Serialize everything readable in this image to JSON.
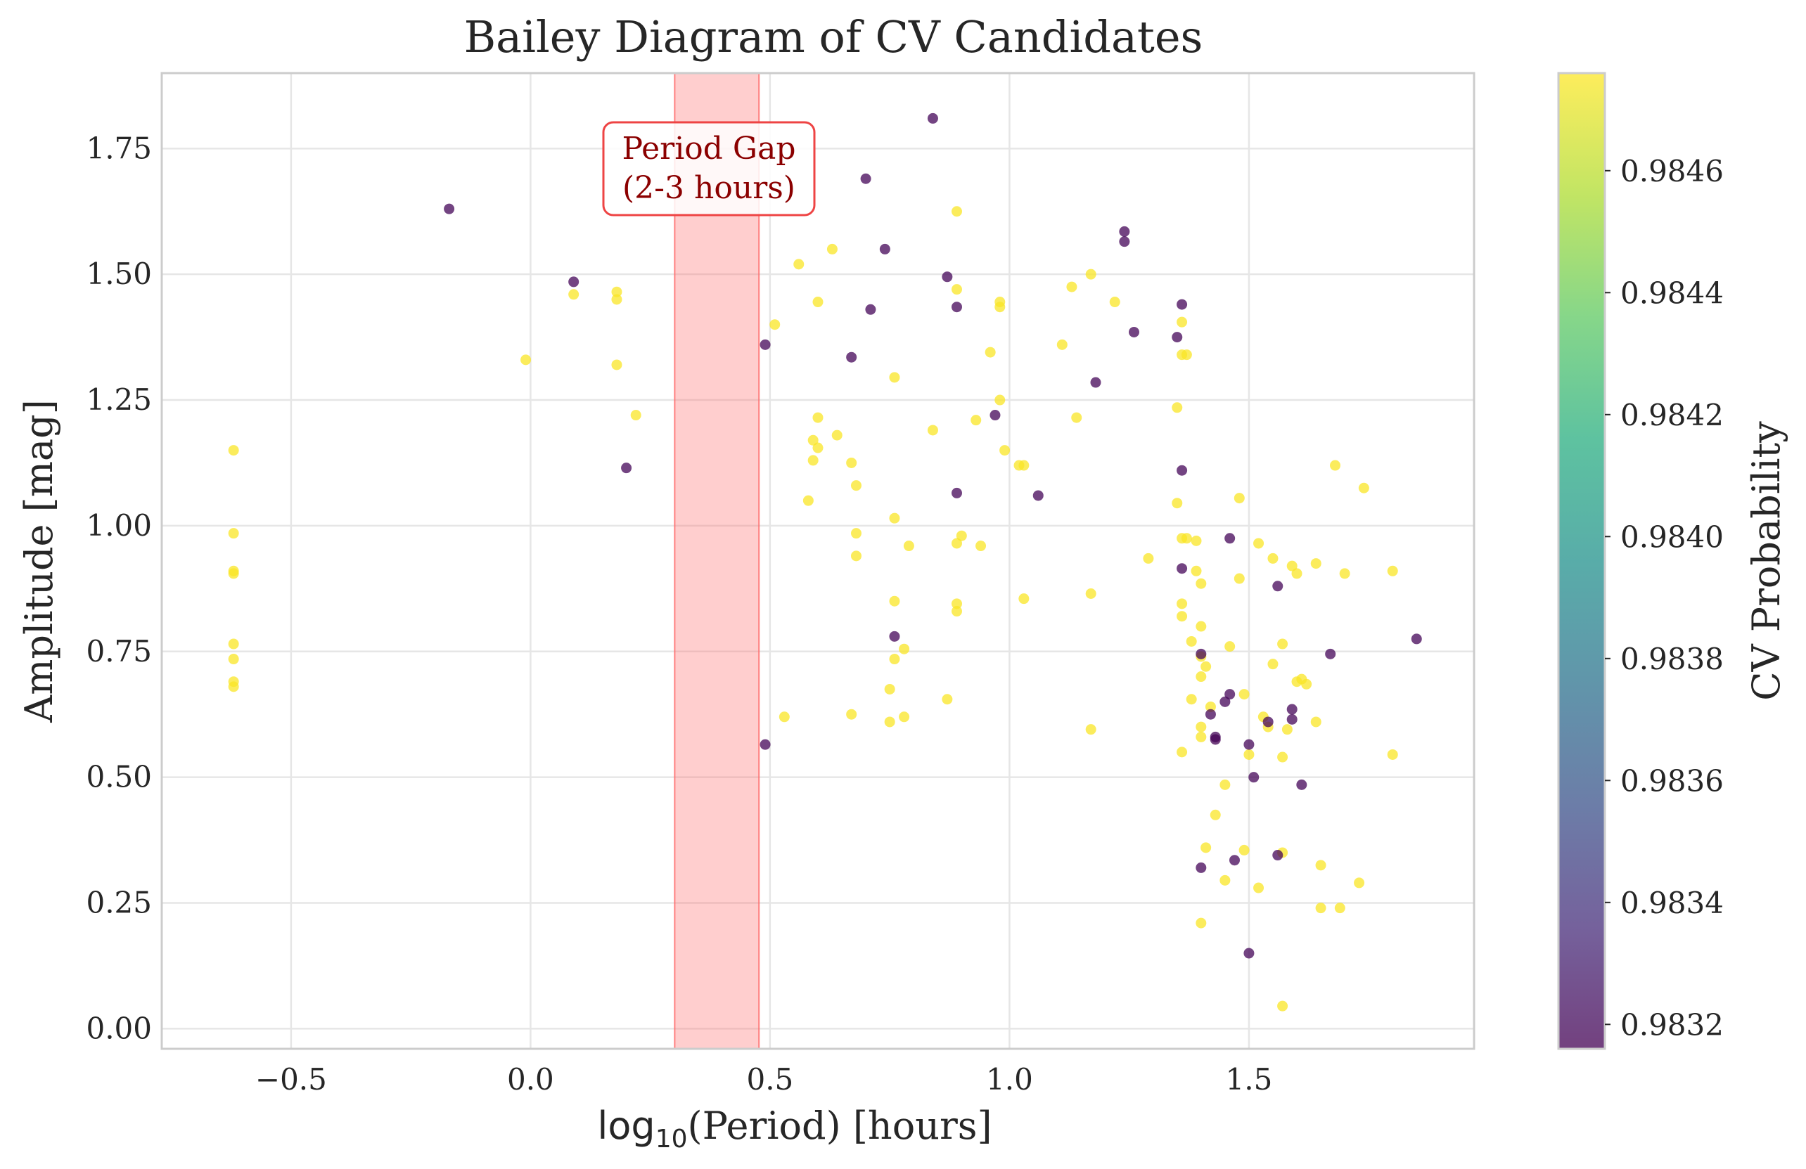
{
  "chart_data": {
    "type": "scatter",
    "title": "Bailey Diagram of CV Candidates",
    "xlabel_base": "log",
    "xlabel_sub": "10",
    "xlabel_rest": "(Period) [hours]",
    "ylabel": "Amplitude [mag]",
    "xlim": [
      -0.77,
      1.97
    ],
    "ylim": [
      -0.04,
      1.9
    ],
    "x_ticks": [
      -0.5,
      0.0,
      0.5,
      1.0,
      1.5
    ],
    "x_tick_labels": [
      "−0.5",
      "0.0",
      "0.5",
      "1.0",
      "1.5"
    ],
    "y_ticks": [
      0.0,
      0.25,
      0.5,
      0.75,
      1.0,
      1.25,
      1.5,
      1.75
    ],
    "y_tick_labels": [
      "0.00",
      "0.25",
      "0.50",
      "0.75",
      "1.00",
      "1.25",
      "1.50",
      "1.75"
    ],
    "grid": true,
    "colormap": "viridis",
    "colorbar": {
      "label": "CV Probability",
      "range": [
        0.98316,
        0.98476
      ],
      "ticks": [
        0.9832,
        0.9834,
        0.9836,
        0.9838,
        0.984,
        0.9842,
        0.9844,
        0.9846
      ],
      "tick_labels": [
        "0.9832",
        "0.9834",
        "0.9836",
        "0.9838",
        "0.9840",
        "0.9842",
        "0.9844",
        "0.9846"
      ]
    },
    "shaded_region": {
      "x_range": [
        0.301,
        0.477
      ],
      "color": "#ff6666",
      "label_line1": "Period Gap",
      "label_line2": "(2-3 hours)"
    },
    "series": [
      {
        "color_value": 0.98475,
        "points": [
          [
            -0.62,
            1.15
          ],
          [
            -0.62,
            0.985
          ],
          [
            -0.62,
            0.91
          ],
          [
            -0.62,
            0.905
          ],
          [
            -0.62,
            0.765
          ],
          [
            -0.62,
            0.735
          ],
          [
            -0.62,
            0.69
          ],
          [
            -0.62,
            0.68
          ],
          [
            -0.01,
            1.33
          ],
          [
            0.09,
            1.46
          ],
          [
            0.18,
            1.465
          ],
          [
            0.18,
            1.45
          ],
          [
            0.18,
            1.32
          ],
          [
            0.22,
            1.22
          ],
          [
            0.51,
            1.4
          ],
          [
            0.53,
            0.62
          ],
          [
            0.56,
            1.52
          ],
          [
            0.58,
            1.05
          ],
          [
            0.59,
            1.17
          ],
          [
            0.59,
            1.13
          ],
          [
            0.6,
            1.155
          ],
          [
            0.6,
            1.445
          ],
          [
            0.6,
            1.215
          ],
          [
            0.63,
            1.55
          ],
          [
            0.64,
            1.18
          ],
          [
            0.67,
            1.125
          ],
          [
            0.67,
            0.625
          ],
          [
            0.68,
            1.08
          ],
          [
            0.68,
            0.985
          ],
          [
            0.68,
            0.94
          ],
          [
            0.76,
            1.295
          ],
          [
            0.76,
            1.015
          ],
          [
            0.76,
            0.85
          ],
          [
            0.76,
            0.735
          ],
          [
            0.75,
            0.675
          ],
          [
            0.75,
            0.61
          ],
          [
            0.78,
            0.755
          ],
          [
            0.78,
            0.62
          ],
          [
            0.79,
            0.96
          ],
          [
            0.84,
            1.19
          ],
          [
            0.87,
            0.655
          ],
          [
            0.89,
            1.625
          ],
          [
            0.89,
            1.47
          ],
          [
            0.89,
            0.845
          ],
          [
            0.89,
            0.83
          ],
          [
            0.89,
            0.965
          ],
          [
            0.9,
            0.98
          ],
          [
            0.93,
            1.21
          ],
          [
            0.94,
            0.96
          ],
          [
            0.96,
            1.345
          ],
          [
            0.98,
            1.25
          ],
          [
            0.98,
            1.445
          ],
          [
            0.98,
            1.435
          ],
          [
            0.99,
            1.15
          ],
          [
            1.02,
            1.12
          ],
          [
            1.03,
            1.12
          ],
          [
            1.03,
            0.855
          ],
          [
            1.11,
            1.36
          ],
          [
            1.13,
            1.475
          ],
          [
            1.14,
            1.215
          ],
          [
            1.17,
            1.5
          ],
          [
            1.17,
            0.865
          ],
          [
            1.17,
            0.595
          ],
          [
            1.22,
            1.445
          ],
          [
            1.29,
            0.935
          ],
          [
            1.35,
            1.235
          ],
          [
            1.35,
            1.045
          ],
          [
            1.36,
            1.405
          ],
          [
            1.36,
            1.34
          ],
          [
            1.37,
            1.34
          ],
          [
            1.36,
            0.975
          ],
          [
            1.37,
            0.975
          ],
          [
            1.36,
            0.845
          ],
          [
            1.36,
            0.82
          ],
          [
            1.36,
            0.55
          ],
          [
            1.38,
            0.77
          ],
          [
            1.39,
            0.97
          ],
          [
            1.39,
            0.91
          ],
          [
            1.4,
            0.885
          ],
          [
            1.4,
            0.8
          ],
          [
            1.4,
            0.74
          ],
          [
            1.4,
            0.7
          ],
          [
            1.41,
            0.72
          ],
          [
            1.4,
            0.6
          ],
          [
            1.4,
            0.58
          ],
          [
            1.41,
            0.36
          ],
          [
            1.4,
            0.21
          ],
          [
            1.38,
            0.655
          ],
          [
            1.42,
            0.64
          ],
          [
            1.43,
            0.425
          ],
          [
            1.45,
            0.485
          ],
          [
            1.45,
            0.295
          ],
          [
            1.46,
            0.76
          ],
          [
            1.48,
            1.055
          ],
          [
            1.48,
            0.895
          ],
          [
            1.49,
            0.665
          ],
          [
            1.49,
            0.355
          ],
          [
            1.5,
            0.545
          ],
          [
            1.52,
            0.965
          ],
          [
            1.52,
            0.28
          ],
          [
            1.53,
            0.62
          ],
          [
            1.54,
            0.6
          ],
          [
            1.55,
            0.935
          ],
          [
            1.55,
            0.725
          ],
          [
            1.57,
            0.765
          ],
          [
            1.57,
            0.54
          ],
          [
            1.57,
            0.35
          ],
          [
            1.58,
            0.595
          ],
          [
            1.57,
            0.045
          ],
          [
            1.59,
            0.92
          ],
          [
            1.6,
            0.905
          ],
          [
            1.6,
            0.69
          ],
          [
            1.61,
            0.695
          ],
          [
            1.62,
            0.685
          ],
          [
            1.64,
            0.925
          ],
          [
            1.64,
            0.61
          ],
          [
            1.65,
            0.325
          ],
          [
            1.65,
            0.24
          ],
          [
            1.68,
            1.12
          ],
          [
            1.69,
            0.24
          ],
          [
            1.7,
            0.905
          ],
          [
            1.73,
            0.29
          ],
          [
            1.74,
            1.075
          ],
          [
            1.8,
            0.91
          ],
          [
            1.8,
            0.545
          ]
        ]
      },
      {
        "color_value": 0.98318,
        "points": [
          [
            -0.17,
            1.63
          ],
          [
            0.09,
            1.485
          ],
          [
            0.2,
            1.115
          ],
          [
            0.49,
            1.36
          ],
          [
            0.49,
            0.565
          ],
          [
            0.67,
            1.335
          ],
          [
            0.7,
            1.69
          ],
          [
            0.71,
            1.43
          ],
          [
            0.74,
            1.55
          ],
          [
            0.76,
            0.78
          ],
          [
            0.84,
            1.81
          ],
          [
            0.87,
            1.495
          ],
          [
            0.89,
            1.435
          ],
          [
            0.89,
            1.065
          ],
          [
            0.97,
            1.22
          ],
          [
            1.06,
            1.06
          ],
          [
            1.18,
            1.285
          ],
          [
            1.24,
            1.585
          ],
          [
            1.24,
            1.565
          ],
          [
            1.26,
            1.385
          ],
          [
            1.35,
            1.375
          ],
          [
            1.36,
            1.44
          ],
          [
            1.36,
            1.11
          ],
          [
            1.36,
            0.915
          ],
          [
            1.4,
            0.745
          ],
          [
            1.4,
            0.32
          ],
          [
            1.42,
            0.625
          ],
          [
            1.43,
            0.58
          ],
          [
            1.45,
            0.65
          ],
          [
            1.46,
            0.975
          ],
          [
            1.46,
            0.665
          ],
          [
            1.47,
            0.335
          ],
          [
            1.5,
            0.565
          ],
          [
            1.5,
            0.15
          ],
          [
            1.51,
            0.5
          ],
          [
            1.54,
            0.61
          ],
          [
            1.56,
            0.88
          ],
          [
            1.56,
            0.345
          ],
          [
            1.59,
            0.635
          ],
          [
            1.59,
            0.615
          ],
          [
            1.61,
            0.485
          ],
          [
            1.67,
            0.745
          ],
          [
            1.85,
            0.775
          ]
        ]
      },
      {
        "color_value": 0.98316,
        "points": [
          [
            1.43,
            0.575
          ]
        ]
      }
    ]
  }
}
